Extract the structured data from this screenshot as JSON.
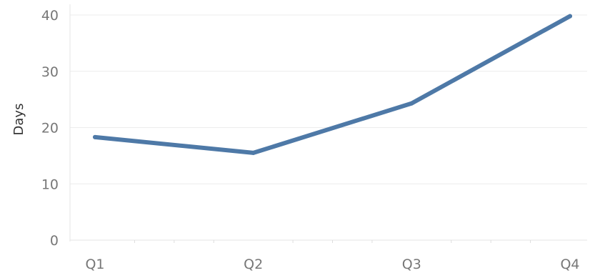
{
  "chart_data": {
    "type": "line",
    "title": "",
    "xlabel": "",
    "ylabel": "Days",
    "categories": [
      "Q1",
      "Q2",
      "Q3",
      "Q4"
    ],
    "series": [
      {
        "values": [
          18.3,
          15.5,
          24.3,
          39.8
        ],
        "color": "#4e79a7"
      }
    ],
    "ylim": [
      0,
      40
    ],
    "yticks": [
      0,
      10,
      20,
      30,
      40
    ],
    "grid": true,
    "legend": "none"
  }
}
